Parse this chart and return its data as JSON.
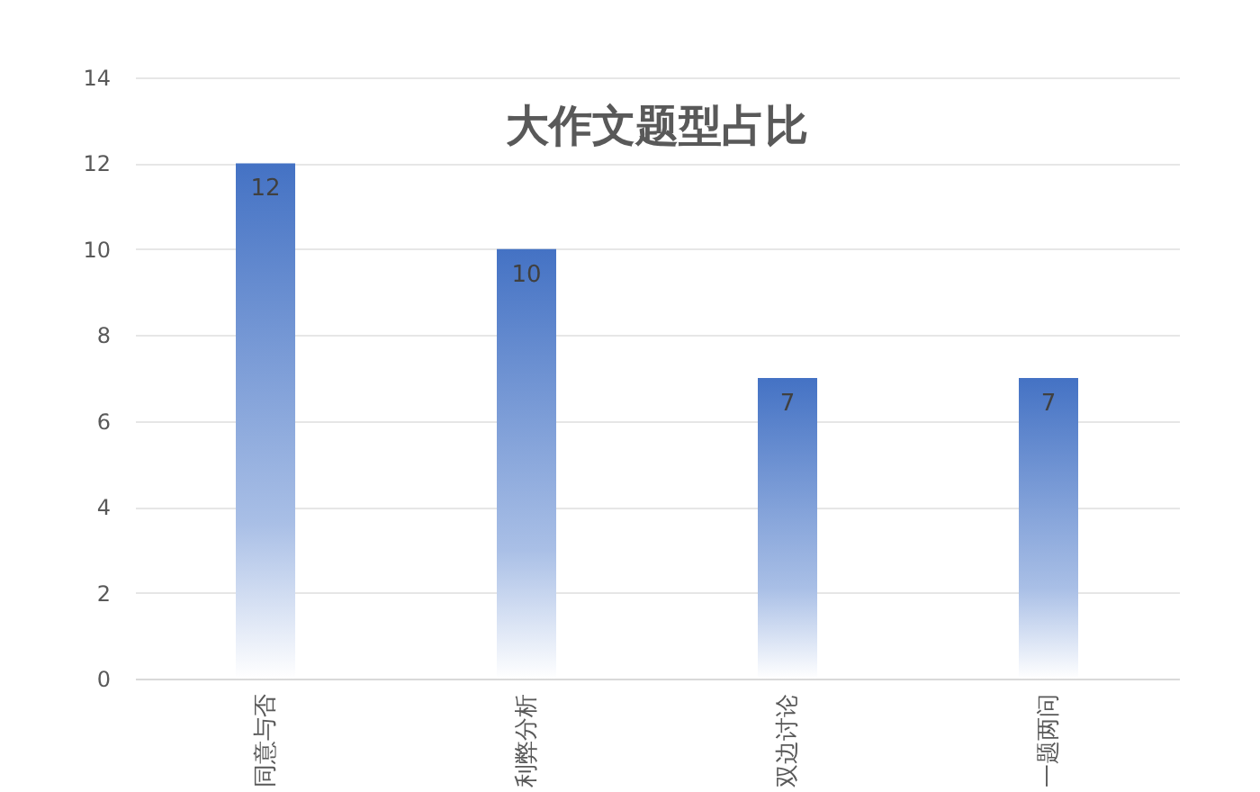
{
  "chart_data": {
    "type": "bar",
    "title": "大作文题型占比",
    "categories": [
      "同意与否",
      "利弊分析",
      "双边讨论",
      "一题两问"
    ],
    "values": [
      12,
      10,
      7,
      7
    ],
    "color": "#4472c4",
    "ylim": [
      0,
      14
    ],
    "yticks": [
      0,
      2,
      4,
      6,
      8,
      10,
      12,
      14
    ],
    "grid": "y",
    "data_labels": true
  }
}
